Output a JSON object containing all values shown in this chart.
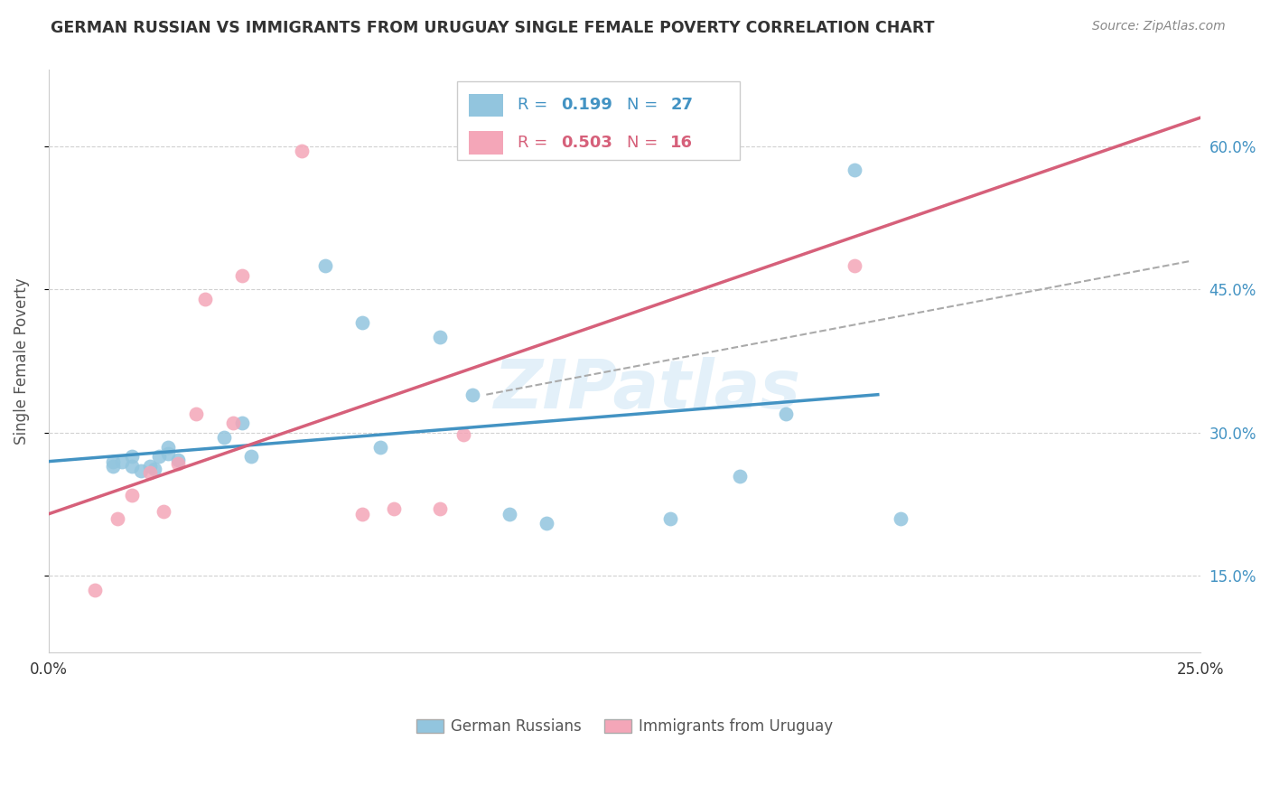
{
  "title": "GERMAN RUSSIAN VS IMMIGRANTS FROM URUGUAY SINGLE FEMALE POVERTY CORRELATION CHART",
  "source": "Source: ZipAtlas.com",
  "ylabel": "Single Female Poverty",
  "xlim": [
    0.0,
    0.25
  ],
  "ylim": [
    0.07,
    0.68
  ],
  "x_ticks": [
    0.0,
    0.05,
    0.1,
    0.15,
    0.2,
    0.25
  ],
  "x_tick_labels": [
    "0.0%",
    "",
    "",
    "",
    "",
    "25.0%"
  ],
  "y_ticks": [
    0.15,
    0.3,
    0.45,
    0.6
  ],
  "y_tick_labels": [
    "15.0%",
    "30.0%",
    "45.0%",
    "60.0%"
  ],
  "blue_color": "#92c5de",
  "pink_color": "#f4a6b8",
  "blue_line_color": "#4393c3",
  "pink_line_color": "#d6607a",
  "blue_scatter_x": [
    0.014,
    0.014,
    0.016,
    0.018,
    0.018,
    0.02,
    0.022,
    0.023,
    0.024,
    0.026,
    0.026,
    0.028,
    0.038,
    0.042,
    0.044,
    0.06,
    0.068,
    0.072,
    0.085,
    0.092,
    0.1,
    0.108,
    0.135,
    0.15,
    0.16,
    0.175,
    0.185
  ],
  "blue_scatter_y": [
    0.27,
    0.265,
    0.27,
    0.265,
    0.275,
    0.26,
    0.265,
    0.262,
    0.275,
    0.285,
    0.278,
    0.272,
    0.295,
    0.31,
    0.275,
    0.475,
    0.415,
    0.285,
    0.4,
    0.34,
    0.215,
    0.205,
    0.21,
    0.255,
    0.32,
    0.575,
    0.21
  ],
  "pink_scatter_x": [
    0.01,
    0.015,
    0.018,
    0.022,
    0.025,
    0.028,
    0.032,
    0.034,
    0.04,
    0.042,
    0.055,
    0.068,
    0.075,
    0.085,
    0.09,
    0.175
  ],
  "pink_scatter_y": [
    0.135,
    0.21,
    0.235,
    0.258,
    0.218,
    0.268,
    0.32,
    0.44,
    0.31,
    0.465,
    0.595,
    0.215,
    0.22,
    0.22,
    0.298,
    0.475
  ],
  "blue_trend_x": [
    0.0,
    0.18
  ],
  "blue_trend_y": [
    0.27,
    0.34
  ],
  "pink_trend_x": [
    0.0,
    0.25
  ],
  "pink_trend_y": [
    0.215,
    0.63
  ],
  "dashed_line_x": [
    0.095,
    0.248
  ],
  "dashed_line_y": [
    0.34,
    0.48
  ],
  "watermark_text": "ZIPatlas"
}
